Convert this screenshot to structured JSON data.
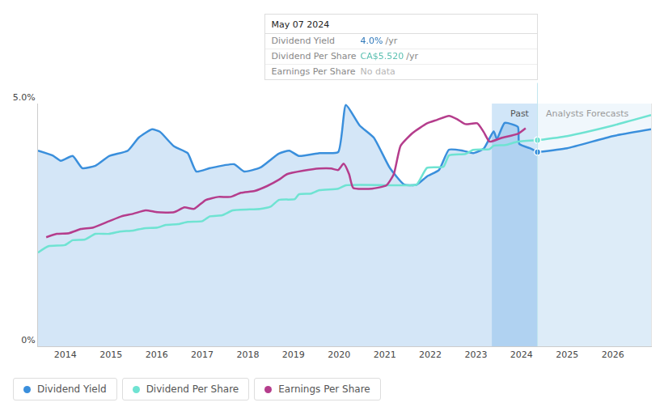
{
  "chart_data": {
    "type": "line",
    "xlim": [
      2013.4,
      2026.84
    ],
    "xticks": [
      2014,
      2015,
      2016,
      2017,
      2018,
      2019,
      2020,
      2021,
      2022,
      2023,
      2024,
      2025,
      2026
    ],
    "ylim": [
      0,
      5
    ],
    "yticks": [
      {
        "value": 0,
        "label": "0%"
      },
      {
        "value": 5,
        "label": "5.0%"
      }
    ],
    "y2lim": [
      0,
      6.5
    ],
    "y2ticks": [],
    "grid": true,
    "legend": "bottom left",
    "past_range": [
      2023.35,
      2024.35
    ],
    "region_labels": [
      "Past",
      "Analysts Forecasts"
    ],
    "series": [
      {
        "name": "Dividend Yield",
        "color": "#3a8fdc",
        "type": "area",
        "marker": "circle",
        "x": [
          2013.4,
          2013.72,
          2013.9,
          2014.16,
          2014.37,
          2014.66,
          2014.96,
          2015.37,
          2015.61,
          2015.9,
          2016.07,
          2016.38,
          2016.68,
          2016.87,
          2017.17,
          2017.7,
          2017.92,
          2018.27,
          2018.68,
          2018.91,
          2019.12,
          2019.57,
          2019.98,
          2020.15,
          2020.45,
          2020.76,
          2021.11,
          2021.43,
          2021.7,
          2021.93,
          2022.19,
          2022.41,
          2022.71,
          2022.94,
          2023.17,
          2023.39,
          2023.46,
          2023.63,
          2023.92,
          2023.95,
          2024.18,
          2024.35
        ],
        "values": [
          4.03,
          3.93,
          3.82,
          3.92,
          3.67,
          3.72,
          3.92,
          4.03,
          4.3,
          4.47,
          4.42,
          4.12,
          3.98,
          3.6,
          3.67,
          3.75,
          3.6,
          3.68,
          3.97,
          4.03,
          3.92,
          3.98,
          4.0,
          4.97,
          4.55,
          4.3,
          3.68,
          3.33,
          3.33,
          3.5,
          3.63,
          4.05,
          4.03,
          3.98,
          4.07,
          4.43,
          4.27,
          4.6,
          4.52,
          4.17,
          4.08,
          4.0
        ],
        "forecast_x": [
          2024.35,
          2025.0,
          2026.0,
          2026.84
        ],
        "forecast_values": [
          4.0,
          4.08,
          4.33,
          4.47
        ]
      },
      {
        "name": "Dividend Per Share",
        "color": "#6fe3d2",
        "type": "line",
        "axis": "y2",
        "marker": "circle",
        "x": [
          2013.4,
          2013.63,
          2013.99,
          2014.16,
          2014.43,
          2014.66,
          2014.96,
          2015.19,
          2015.49,
          2015.72,
          2016.02,
          2016.2,
          2016.47,
          2016.68,
          2017.0,
          2017.17,
          2017.44,
          2017.67,
          2018.27,
          2018.5,
          2018.68,
          2019.03,
          2019.12,
          2019.39,
          2019.57,
          2019.98,
          2020.15,
          2021.43,
          2021.7,
          2021.93,
          2022.29,
          2022.41,
          2022.77,
          2022.94,
          2023.3,
          2023.39,
          2023.65,
          2023.92,
          2024.35
        ],
        "values": [
          2.51,
          2.68,
          2.71,
          2.84,
          2.86,
          3.01,
          3.01,
          3.07,
          3.1,
          3.16,
          3.18,
          3.25,
          3.27,
          3.33,
          3.35,
          3.48,
          3.51,
          3.64,
          3.68,
          3.74,
          3.92,
          3.94,
          4.07,
          4.09,
          4.18,
          4.22,
          4.31,
          4.31,
          4.33,
          4.78,
          4.81,
          5.11,
          5.15,
          5.26,
          5.28,
          5.37,
          5.39,
          5.48,
          5.52
        ],
        "forecast_x": [
          2024.35,
          2025.0,
          2026.0,
          2026.84
        ],
        "forecast_values": [
          5.52,
          5.63,
          5.91,
          6.19
        ]
      },
      {
        "name": "Earnings Per Share",
        "color": "#b53d8c",
        "type": "line",
        "axis": "y2",
        "marker": "none",
        "x": [
          2013.58,
          2013.81,
          2014.08,
          2014.34,
          2014.61,
          2014.96,
          2015.23,
          2015.49,
          2015.76,
          2016.02,
          2016.38,
          2016.61,
          2016.82,
          2017.08,
          2017.35,
          2017.62,
          2017.85,
          2018.15,
          2018.42,
          2018.68,
          2018.86,
          2019.21,
          2019.57,
          2019.83,
          2019.98,
          2020.1,
          2020.22,
          2020.31,
          2020.72,
          2021.04,
          2021.2,
          2021.35,
          2021.61,
          2021.93,
          2022.14,
          2022.41,
          2022.59,
          2022.77,
          2023.03,
          2023.17,
          2023.3,
          2023.56,
          2023.92,
          2024.09
        ],
        "values": [
          2.92,
          3.01,
          3.03,
          3.14,
          3.18,
          3.35,
          3.48,
          3.55,
          3.64,
          3.59,
          3.59,
          3.72,
          3.68,
          3.92,
          4.0,
          4.0,
          4.11,
          4.16,
          4.29,
          4.46,
          4.61,
          4.7,
          4.76,
          4.76,
          4.72,
          4.89,
          4.61,
          4.24,
          4.22,
          4.31,
          4.61,
          5.37,
          5.71,
          5.97,
          6.06,
          6.17,
          6.08,
          5.95,
          5.97,
          5.74,
          5.48,
          5.58,
          5.69,
          5.84
        ]
      }
    ],
    "tooltip": {
      "x": 2024.35,
      "title": "May 07 2024",
      "rows": [
        {
          "label": "Dividend Yield",
          "value": "4.0%",
          "unit": "/yr"
        },
        {
          "label": "Dividend Per Share",
          "value": "CA$5.520",
          "unit": "/yr"
        },
        {
          "label": "Earnings Per Share",
          "value": "No data"
        }
      ]
    }
  }
}
